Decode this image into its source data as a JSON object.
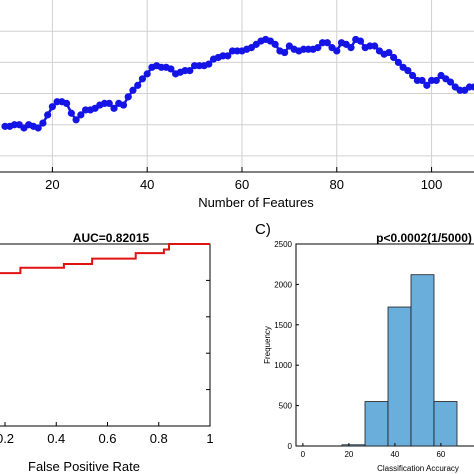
{
  "chart_data": [
    {
      "type": "line",
      "panel": "A",
      "xlabel": "Number of Features",
      "ylabel": "",
      "xlim": [
        10,
        114
      ],
      "ylim": [
        0,
        1
      ],
      "xticks": [
        "20",
        "40",
        "60",
        "80",
        "100"
      ],
      "grid": true,
      "color": "#1414e6",
      "series": [
        {
          "x": [
            10,
            11,
            12,
            13,
            14,
            15,
            16,
            17,
            18,
            19,
            20,
            21,
            22,
            23,
            24,
            25,
            26,
            27,
            28,
            29,
            30,
            31,
            32,
            33,
            34,
            35,
            36,
            37,
            38,
            39,
            40,
            41,
            42,
            43,
            44,
            45,
            46,
            47,
            48,
            49,
            50,
            51,
            52,
            53,
            54,
            55,
            56,
            57,
            58,
            59,
            60,
            61,
            62,
            63,
            64,
            65,
            66,
            67,
            68,
            69,
            70,
            71,
            72,
            73,
            74,
            75,
            76,
            77,
            78,
            79,
            80,
            81,
            82,
            83,
            84,
            85,
            86,
            87,
            88,
            89,
            90,
            91,
            92,
            93,
            94,
            95,
            96,
            97,
            98,
            99,
            100,
            101,
            102,
            103,
            104,
            105,
            106,
            107,
            108,
            109,
            110,
            111,
            112,
            113,
            114
          ],
          "y": [
            0.26,
            0.26,
            0.27,
            0.27,
            0.25,
            0.27,
            0.26,
            0.25,
            0.28,
            0.33,
            0.38,
            0.41,
            0.41,
            0.4,
            0.34,
            0.3,
            0.33,
            0.36,
            0.36,
            0.37,
            0.39,
            0.4,
            0.4,
            0.37,
            0.4,
            0.39,
            0.44,
            0.48,
            0.51,
            0.55,
            0.58,
            0.62,
            0.63,
            0.62,
            0.62,
            0.61,
            0.58,
            0.59,
            0.6,
            0.6,
            0.63,
            0.63,
            0.63,
            0.64,
            0.67,
            0.68,
            0.69,
            0.69,
            0.72,
            0.72,
            0.72,
            0.73,
            0.74,
            0.76,
            0.78,
            0.79,
            0.78,
            0.76,
            0.72,
            0.71,
            0.75,
            0.73,
            0.72,
            0.73,
            0.73,
            0.73,
            0.74,
            0.77,
            0.77,
            0.74,
            0.72,
            0.77,
            0.76,
            0.74,
            0.79,
            0.78,
            0.74,
            0.75,
            0.75,
            0.72,
            0.7,
            0.71,
            0.68,
            0.65,
            0.62,
            0.6,
            0.57,
            0.54,
            0.54,
            0.51,
            0.54,
            0.54,
            0.57,
            0.55,
            0.53,
            0.5,
            0.48,
            0.48,
            0.5,
            0.5,
            0.48,
            0.46,
            0.5,
            0.57,
            0.53
          ]
        }
      ]
    },
    {
      "type": "line",
      "panel": "B",
      "title": "AUC=0.82015",
      "xlabel": "False Positive Rate",
      "ylabel": "",
      "xlim": [
        0.14,
        1.0
      ],
      "ylim": [
        0,
        1
      ],
      "xticks": [
        "0.2",
        "0.4",
        "0.6",
        "0.8",
        "1"
      ],
      "color": "#e01212",
      "series": [
        {
          "x": [
            0.14,
            0.26,
            0.26,
            0.43,
            0.43,
            0.54,
            0.54,
            0.71,
            0.71,
            0.82,
            0.82,
            0.84,
            0.84,
            1.0
          ],
          "y": [
            0.84,
            0.84,
            0.87,
            0.87,
            0.89,
            0.89,
            0.92,
            0.92,
            0.95,
            0.95,
            0.97,
            0.97,
            1.0,
            1.0
          ]
        }
      ]
    },
    {
      "type": "bar",
      "panel": "C",
      "title": "p<0.0002(1/5000)",
      "xlabel": "Classification Accuracy",
      "ylabel": "Frequency",
      "xlim": [
        -3,
        77
      ],
      "ylim": [
        0,
        2500
      ],
      "xticks": [
        "0",
        "20",
        "40",
        "60"
      ],
      "yticks": [
        "0",
        "500",
        "1000",
        "1500",
        "2000",
        "2500"
      ],
      "bin_edges": [
        -3,
        7,
        17,
        27,
        37,
        47,
        57,
        67,
        77
      ],
      "values": [
        0,
        0,
        15,
        550,
        1720,
        2120,
        550,
        0
      ],
      "color": "#6aaedc"
    }
  ],
  "labels": {
    "panel_c_letter": "C)"
  }
}
